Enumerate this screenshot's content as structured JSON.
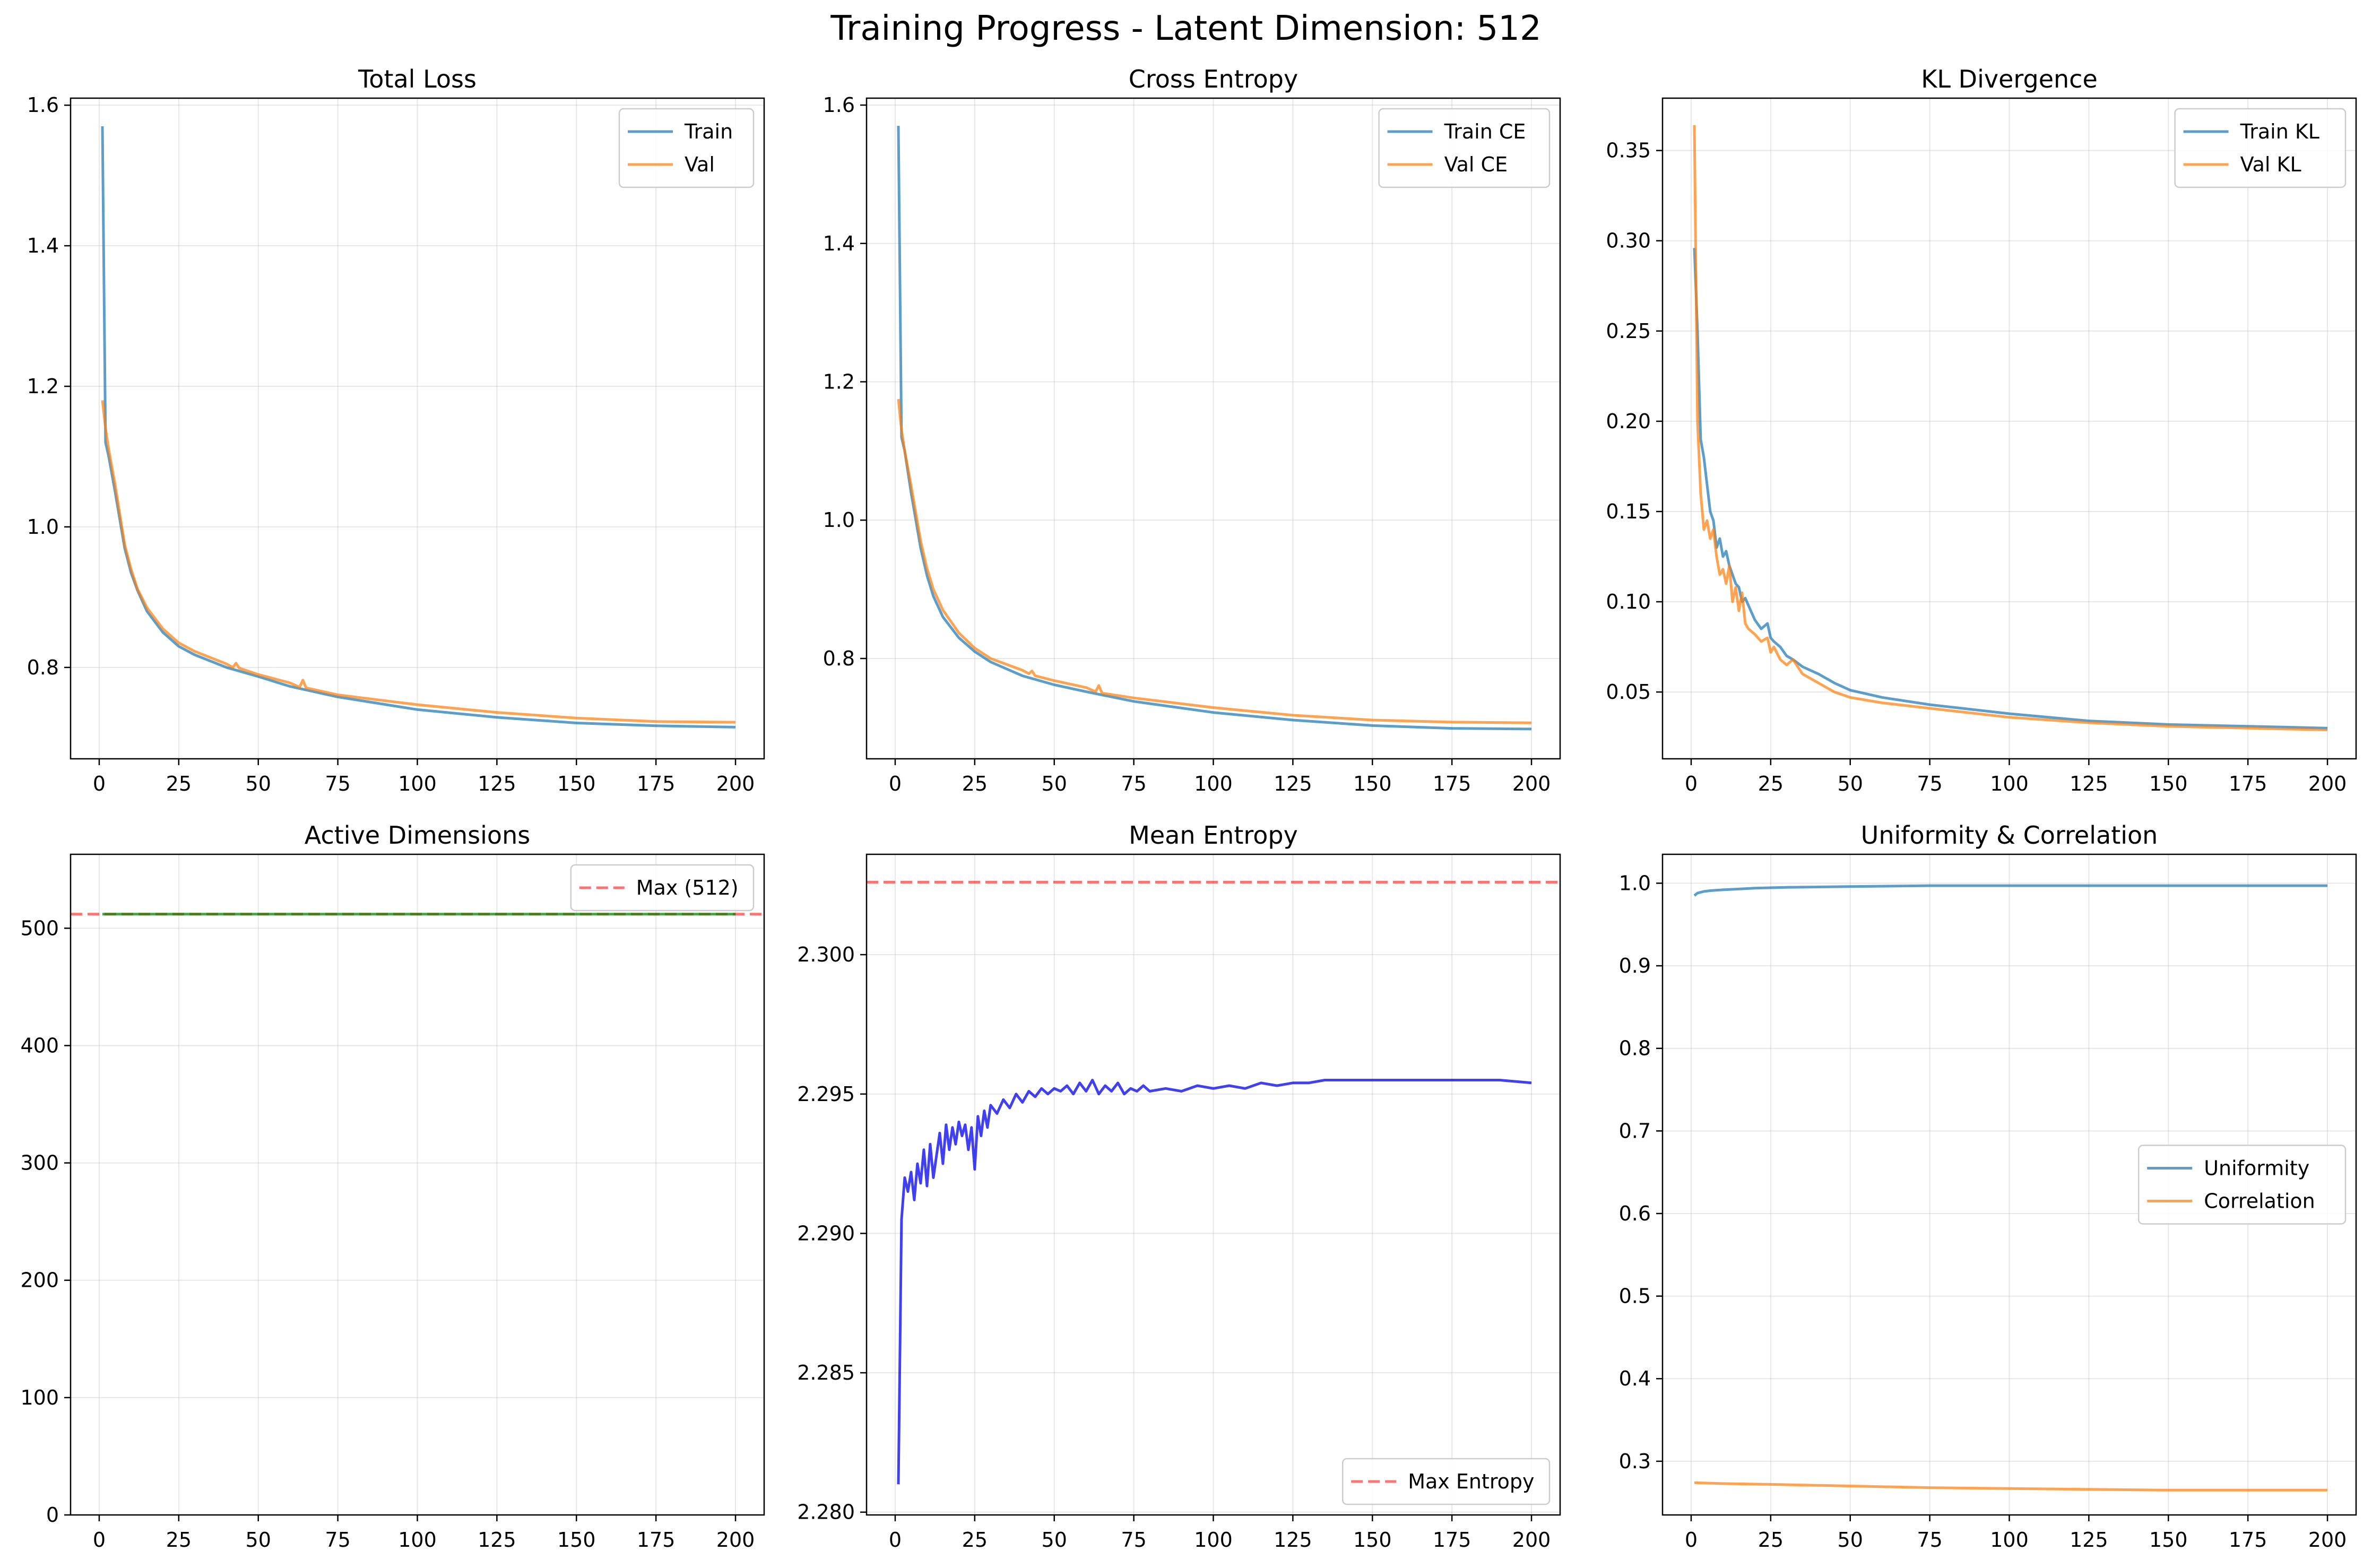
{
  "figure_title": "Training Progress - Latent Dimension: 512",
  "colors": {
    "blue": "#1f77b4",
    "orange": "#ff7f0e",
    "red": "#ff0000",
    "green": "#008000",
    "entropy_blue": "#0000ee",
    "grid": "#b0b0b0"
  },
  "chart_data": [
    {
      "type": "line",
      "title": "Total Loss",
      "xlabel": "",
      "ylabel": "",
      "xlim": [
        -9,
        209
      ],
      "ylim": [
        0.67,
        1.61
      ],
      "xticks": [
        0,
        25,
        50,
        75,
        100,
        125,
        150,
        175,
        200
      ],
      "yticks": [
        0.8,
        1.0,
        1.2,
        1.4,
        1.6
      ],
      "ytick_decimals": 1,
      "grid": true,
      "legend_position": "upper right",
      "series": [
        {
          "name": "Train",
          "color": "blue",
          "x": [
            1,
            2,
            3,
            5,
            8,
            10,
            12,
            15,
            20,
            25,
            30,
            40,
            50,
            60,
            75,
            100,
            125,
            150,
            175,
            200
          ],
          "y": [
            1.57,
            1.12,
            1.1,
            1.05,
            0.97,
            0.935,
            0.91,
            0.88,
            0.85,
            0.83,
            0.818,
            0.8,
            0.787,
            0.773,
            0.758,
            0.74,
            0.729,
            0.721,
            0.717,
            0.715
          ]
        },
        {
          "name": "Val",
          "color": "orange",
          "x": [
            1,
            2,
            3,
            5,
            8,
            10,
            12,
            15,
            20,
            25,
            30,
            40,
            42,
            43,
            44,
            50,
            60,
            63,
            64,
            65,
            75,
            100,
            125,
            150,
            175,
            200
          ],
          "y": [
            1.18,
            1.14,
            1.11,
            1.06,
            0.975,
            0.94,
            0.912,
            0.885,
            0.855,
            0.835,
            0.823,
            0.805,
            0.8,
            0.806,
            0.799,
            0.79,
            0.778,
            0.772,
            0.782,
            0.771,
            0.761,
            0.747,
            0.736,
            0.728,
            0.723,
            0.722
          ]
        }
      ]
    },
    {
      "type": "line",
      "title": "Cross Entropy",
      "xlabel": "",
      "ylabel": "",
      "xlim": [
        -9,
        209
      ],
      "ylim": [
        0.655,
        1.61
      ],
      "xticks": [
        0,
        25,
        50,
        75,
        100,
        125,
        150,
        175,
        200
      ],
      "yticks": [
        0.8,
        1.0,
        1.2,
        1.4,
        1.6
      ],
      "ytick_decimals": 1,
      "grid": true,
      "legend_position": "upper right",
      "series": [
        {
          "name": "Train CE",
          "color": "blue",
          "x": [
            1,
            2,
            3,
            5,
            8,
            10,
            12,
            15,
            20,
            25,
            30,
            40,
            50,
            60,
            75,
            100,
            125,
            150,
            175,
            200
          ],
          "y": [
            1.57,
            1.12,
            1.1,
            1.04,
            0.96,
            0.92,
            0.89,
            0.86,
            0.83,
            0.81,
            0.795,
            0.775,
            0.762,
            0.752,
            0.738,
            0.722,
            0.711,
            0.703,
            0.699,
            0.698
          ]
        },
        {
          "name": "Val CE",
          "color": "orange",
          "x": [
            1,
            2,
            3,
            5,
            8,
            10,
            12,
            15,
            20,
            25,
            30,
            40,
            42,
            43,
            44,
            50,
            60,
            63,
            64,
            65,
            75,
            100,
            125,
            150,
            175,
            200
          ],
          "y": [
            1.175,
            1.13,
            1.1,
            1.05,
            0.97,
            0.93,
            0.9,
            0.87,
            0.837,
            0.815,
            0.8,
            0.783,
            0.778,
            0.782,
            0.775,
            0.768,
            0.758,
            0.752,
            0.761,
            0.75,
            0.743,
            0.729,
            0.718,
            0.711,
            0.708,
            0.707
          ]
        }
      ]
    },
    {
      "type": "line",
      "title": "KL Divergence",
      "xlabel": "",
      "ylabel": "",
      "xlim": [
        -9,
        209
      ],
      "ylim": [
        0.013,
        0.379
      ],
      "xticks": [
        0,
        25,
        50,
        75,
        100,
        125,
        150,
        175,
        200
      ],
      "yticks": [
        0.05,
        0.1,
        0.15,
        0.2,
        0.25,
        0.3,
        0.35
      ],
      "ytick_decimals": 2,
      "grid": true,
      "legend_position": "upper right",
      "series": [
        {
          "name": "Train KL",
          "color": "blue",
          "x": [
            1,
            2,
            3,
            4,
            5,
            6,
            7,
            8,
            9,
            10,
            11,
            12,
            13,
            14,
            15,
            16,
            17,
            18,
            20,
            22,
            24,
            25,
            26,
            28,
            30,
            32,
            35,
            40,
            45,
            50,
            60,
            75,
            100,
            125,
            150,
            175,
            200
          ],
          "y": [
            0.296,
            0.25,
            0.19,
            0.18,
            0.165,
            0.15,
            0.145,
            0.13,
            0.135,
            0.125,
            0.128,
            0.12,
            0.115,
            0.11,
            0.108,
            0.1,
            0.102,
            0.098,
            0.09,
            0.085,
            0.088,
            0.08,
            0.078,
            0.075,
            0.07,
            0.068,
            0.064,
            0.06,
            0.055,
            0.051,
            0.047,
            0.043,
            0.038,
            0.034,
            0.032,
            0.031,
            0.03
          ]
        },
        {
          "name": "Val KL",
          "color": "orange",
          "x": [
            1,
            2,
            3,
            4,
            5,
            6,
            7,
            8,
            9,
            10,
            11,
            12,
            13,
            14,
            15,
            16,
            17,
            18,
            20,
            22,
            24,
            25,
            26,
            28,
            30,
            32,
            35,
            40,
            45,
            50,
            60,
            75,
            100,
            125,
            150,
            175,
            200
          ],
          "y": [
            0.364,
            0.2,
            0.16,
            0.14,
            0.145,
            0.135,
            0.14,
            0.125,
            0.115,
            0.118,
            0.11,
            0.12,
            0.1,
            0.108,
            0.095,
            0.105,
            0.088,
            0.085,
            0.082,
            0.078,
            0.08,
            0.072,
            0.075,
            0.068,
            0.065,
            0.068,
            0.06,
            0.055,
            0.05,
            0.047,
            0.044,
            0.041,
            0.036,
            0.033,
            0.031,
            0.03,
            0.029
          ]
        }
      ]
    },
    {
      "type": "line",
      "title": "Active Dimensions",
      "xlabel": "",
      "ylabel": "",
      "xlim": [
        -9,
        209
      ],
      "ylim": [
        0,
        563
      ],
      "xticks": [
        0,
        25,
        50,
        75,
        100,
        125,
        150,
        175,
        200
      ],
      "yticks": [
        0,
        100,
        200,
        300,
        400,
        500
      ],
      "ytick_decimals": 0,
      "grid": true,
      "legend_position": "upper right",
      "series": [
        {
          "name": "",
          "color": "green",
          "x": [
            1,
            200
          ],
          "y": [
            512,
            512
          ]
        }
      ],
      "hlines": [
        {
          "name": "Max (512)",
          "color": "red",
          "y": 512
        }
      ]
    },
    {
      "type": "line",
      "title": "Mean Entropy",
      "xlabel": "",
      "ylabel": "",
      "xlim": [
        -9,
        209
      ],
      "ylim": [
        2.2799,
        2.3036
      ],
      "xticks": [
        0,
        25,
        50,
        75,
        100,
        125,
        150,
        175,
        200
      ],
      "yticks": [
        2.28,
        2.285,
        2.29,
        2.295,
        2.3
      ],
      "ytick_decimals": 3,
      "grid": true,
      "legend_position": "lower right",
      "series": [
        {
          "name": "",
          "color": "entropy_blue",
          "x": [
            1,
            2,
            3,
            4,
            5,
            6,
            7,
            8,
            9,
            10,
            11,
            12,
            13,
            14,
            15,
            16,
            17,
            18,
            19,
            20,
            21,
            22,
            23,
            24,
            25,
            26,
            27,
            28,
            29,
            30,
            32,
            34,
            36,
            38,
            40,
            42,
            44,
            46,
            48,
            50,
            52,
            54,
            56,
            58,
            60,
            62,
            64,
            66,
            68,
            70,
            72,
            74,
            76,
            78,
            80,
            85,
            90,
            95,
            100,
            105,
            110,
            115,
            120,
            125,
            130,
            135,
            140,
            150,
            160,
            170,
            180,
            190,
            200
          ],
          "y": [
            2.281,
            2.2905,
            2.292,
            2.2915,
            2.2922,
            2.2912,
            2.2925,
            2.2918,
            2.293,
            2.2917,
            2.2932,
            2.292,
            2.2928,
            2.2936,
            2.2925,
            2.2939,
            2.293,
            2.2938,
            2.2932,
            2.294,
            2.2935,
            2.2939,
            2.293,
            2.2938,
            2.2923,
            2.2942,
            2.2935,
            2.2944,
            2.2938,
            2.2946,
            2.2943,
            2.2948,
            2.2945,
            2.295,
            2.2947,
            2.2951,
            2.2949,
            2.2952,
            2.295,
            2.2952,
            2.2951,
            2.2953,
            2.295,
            2.2954,
            2.2951,
            2.2955,
            2.295,
            2.2953,
            2.2951,
            2.2954,
            2.295,
            2.2952,
            2.2951,
            2.2953,
            2.2951,
            2.2952,
            2.2951,
            2.2953,
            2.2952,
            2.2953,
            2.2952,
            2.2954,
            2.2953,
            2.2954,
            2.2954,
            2.2955,
            2.2955,
            2.2955,
            2.2955,
            2.2955,
            2.2955,
            2.2955,
            2.2954
          ]
        }
      ],
      "hlines": [
        {
          "name": "Max Entropy",
          "color": "red",
          "y": 2.3026
        }
      ]
    },
    {
      "type": "line",
      "title": "Uniformity & Correlation",
      "xlabel": "",
      "ylabel": "",
      "xlim": [
        -9,
        209
      ],
      "ylim": [
        0.235,
        1.035
      ],
      "xticks": [
        0,
        25,
        50,
        75,
        100,
        125,
        150,
        175,
        200
      ],
      "yticks": [
        0.3,
        0.4,
        0.5,
        0.6,
        0.7,
        0.8,
        0.9,
        1.0
      ],
      "ytick_decimals": 1,
      "grid": true,
      "legend_position": "center right",
      "series": [
        {
          "name": "Uniformity",
          "color": "blue",
          "x": [
            1,
            2,
            4,
            6,
            10,
            15,
            20,
            30,
            50,
            75,
            100,
            150,
            200
          ],
          "y": [
            0.985,
            0.988,
            0.99,
            0.991,
            0.992,
            0.993,
            0.994,
            0.995,
            0.996,
            0.997,
            0.997,
            0.997,
            0.997
          ]
        },
        {
          "name": "Correlation",
          "color": "orange",
          "x": [
            1,
            10,
            25,
            50,
            75,
            100,
            125,
            150,
            175,
            200
          ],
          "y": [
            0.274,
            0.273,
            0.272,
            0.27,
            0.268,
            0.267,
            0.266,
            0.265,
            0.265,
            0.265
          ]
        }
      ]
    }
  ]
}
